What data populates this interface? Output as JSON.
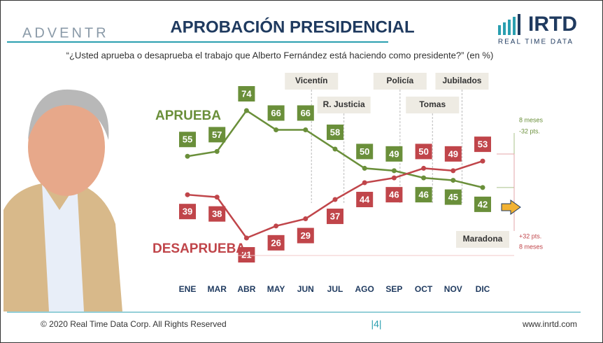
{
  "brand": "ADVENTR",
  "logo": "IRTD",
  "logo_sub": "REAL TIME DATA",
  "footer": {
    "copyright": "© 2020 Real Time Data Corp. All Rights Reserved",
    "page": "|4|",
    "url": "www.inrtd.com"
  },
  "chart_data": {
    "type": "line",
    "title": "APROBACIÓN PRESIDENCIAL",
    "subtitle": "“¿Usted aprueba o desaprueba el trabajo que Alberto Fernández está haciendo como presidente?” (en %)",
    "categories": [
      "ENE",
      "MAR",
      "ABR",
      "MAY",
      "JUN",
      "JUL",
      "AGO",
      "SEP",
      "OCT",
      "NOV",
      "DIC"
    ],
    "series": [
      {
        "name": "APRUEBA",
        "color": "#6a8f3a",
        "values": [
          55,
          57,
          74,
          66,
          66,
          58,
          50,
          49,
          46,
          45,
          42
        ]
      },
      {
        "name": "DESAPRUEBA",
        "color": "#c0454a",
        "values": [
          39,
          38,
          21,
          26,
          29,
          37,
          44,
          46,
          50,
          49,
          53
        ]
      }
    ],
    "annotations": [
      "Vicentín",
      "R. Justicia",
      "Policía",
      "Tomas",
      "Jubilados",
      "Maradona"
    ],
    "notes": [
      "8 meses",
      "-32 pts.",
      "+32 pts.",
      "8 meses"
    ]
  }
}
